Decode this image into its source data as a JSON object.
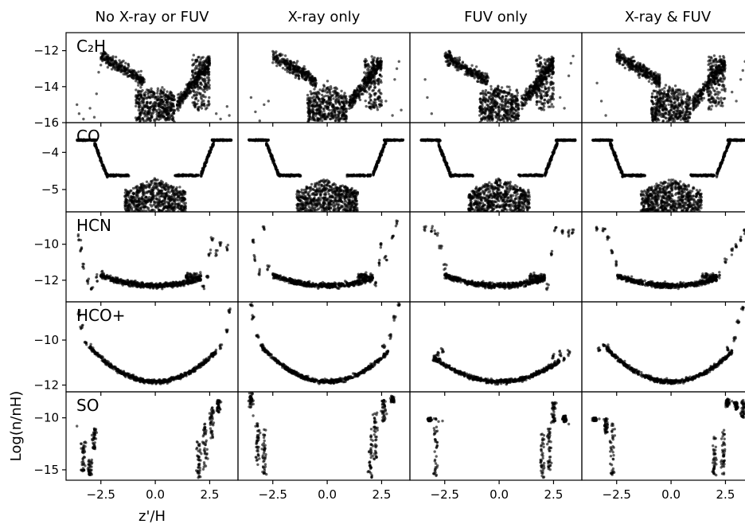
{
  "chart_data": {
    "type": "scatter",
    "layout": "grid",
    "columns": [
      "No X-ray or FUV",
      "X-ray only",
      "FUV only",
      "X-ray & FUV"
    ],
    "xlabel": "z'/H",
    "ylabel": "Log(n/nH)",
    "xlim": [
      -4.1,
      3.8
    ],
    "x_ticks": [
      -2.5,
      0.0,
      2.5
    ],
    "x_tick_labels": [
      "−2.5",
      "0.0",
      "2.5"
    ],
    "marker_color": "#000000",
    "rows": [
      {
        "label": "C₂H",
        "ylim": [
          -16.0,
          -11.0
        ],
        "y_ticks": [
          -16,
          -14,
          -12
        ],
        "y_tick_labels": [
          "−16",
          "−14",
          "−12"
        ],
        "shape": "c2h",
        "variants": [
          {
            "stray_left": [
              [
                -3.6,
                -15.0
              ],
              [
                -3.5,
                -15.5
              ],
              [
                -3.3,
                -15.8
              ],
              [
                -3.0,
                -15.2
              ],
              [
                -2.7,
                -14.4
              ],
              [
                -2.6,
                -13.2
              ],
              [
                -2.5,
                -12.8
              ],
              [
                -2.8,
                -15.7
              ]
            ],
            "stray_right": [
              [
                2.8,
                -15.5
              ],
              [
                3.0,
                -15.8
              ],
              [
                3.3,
                -15.1
              ],
              [
                3.4,
                -15.6
              ]
            ]
          },
          {
            "stray_left": [
              [
                -3.5,
                -14.6
              ],
              [
                -3.3,
                -15.4
              ],
              [
                -3.1,
                -15.9
              ],
              [
                -2.9,
                -15.0
              ],
              [
                -2.7,
                -14.8
              ]
            ],
            "stray_right": [
              [
                2.7,
                -14.8
              ],
              [
                3.0,
                -15.6
              ],
              [
                3.1,
                -13.6
              ],
              [
                3.2,
                -13.0
              ],
              [
                3.3,
                -12.6
              ],
              [
                3.4,
                -15.3
              ]
            ]
          },
          {
            "stray_left": [
              [
                -3.4,
                -13.6
              ],
              [
                -3.3,
                -14.6
              ],
              [
                -3.1,
                -15.5
              ]
            ],
            "stray_right": [
              [
                2.8,
                -14.6
              ],
              [
                3.0,
                -15.2
              ],
              [
                3.2,
                -13.4
              ],
              [
                3.3,
                -12.7
              ],
              [
                3.4,
                -12.3
              ]
            ]
          },
          {
            "stray_left": [
              [
                -3.4,
                -13.8
              ],
              [
                -3.2,
                -14.8
              ],
              [
                -3.0,
                -15.6
              ]
            ],
            "stray_right": [
              [
                2.8,
                -14.3
              ],
              [
                3.0,
                -14.8
              ],
              [
                3.2,
                -13.6
              ],
              [
                3.3,
                -13.1
              ],
              [
                3.4,
                -12.6
              ]
            ]
          }
        ]
      },
      {
        "label": "CO",
        "ylim": [
          -5.6,
          -3.2
        ],
        "y_ticks": [
          -5,
          -4
        ],
        "y_tick_labels": [
          "−5",
          "−4"
        ],
        "shape": "co",
        "variants": [
          {},
          {},
          {},
          {}
        ]
      },
      {
        "label": "HCN",
        "ylim": [
          -13.2,
          -8.2
        ],
        "y_ticks": [
          -12,
          -10
        ],
        "y_tick_labels": [
          "−12",
          "−10"
        ],
        "shape": "hcn",
        "variants": [
          {
            "left_end": [
              [
                -3.5,
                -9.6
              ],
              [
                -3.4,
                -10.3
              ],
              [
                -3.3,
                -11.2
              ],
              [
                -3.1,
                -12.0
              ],
              [
                -2.9,
                -12.4
              ],
              [
                -2.7,
                -11.9
              ],
              [
                -2.5,
                -11.6
              ]
            ],
            "right_end": [
              [
                2.2,
                -12.3
              ],
              [
                2.4,
                -11.8
              ],
              [
                2.5,
                -10.5
              ],
              [
                2.6,
                -9.7
              ],
              [
                2.8,
                -10.5
              ],
              [
                3.0,
                -10.0
              ],
              [
                3.3,
                -10.2
              ]
            ]
          },
          {
            "left_end": [
              [
                -3.4,
                -9.8
              ],
              [
                -3.3,
                -10.8
              ],
              [
                -3.1,
                -11.6
              ],
              [
                -2.9,
                -9.2
              ],
              [
                -2.7,
                -11.3
              ]
            ],
            "right_end": [
              [
                2.2,
                -12.1
              ],
              [
                2.4,
                -11.0
              ],
              [
                2.5,
                -10.1
              ],
              [
                2.7,
                -10.8
              ],
              [
                3.0,
                -9.6
              ],
              [
                3.2,
                -8.8
              ]
            ]
          },
          {
            "left_end": [
              [
                -3.4,
                -9.1
              ],
              [
                -3.1,
                -9.2
              ],
              [
                -2.9,
                -9.4
              ],
              [
                -2.7,
                -10.2
              ],
              [
                -2.5,
                -11.2
              ]
            ],
            "right_end": [
              [
                2.2,
                -12.4
              ],
              [
                2.4,
                -10.6
              ],
              [
                2.6,
                -9.2
              ],
              [
                2.9,
                -9.3
              ],
              [
                3.2,
                -9.4
              ],
              [
                3.4,
                -9.3
              ]
            ]
          },
          {
            "left_end": [
              [
                -3.4,
                -9.1
              ],
              [
                -3.1,
                -9.2
              ],
              [
                -2.9,
                -9.6
              ],
              [
                -2.7,
                -10.4
              ],
              [
                -2.5,
                -11.1
              ]
            ],
            "right_end": [
              [
                2.2,
                -11.8
              ],
              [
                2.5,
                -11.0
              ],
              [
                2.8,
                -10.4
              ],
              [
                3.0,
                -10.1
              ],
              [
                3.2,
                -9.7
              ],
              [
                3.4,
                -9.2
              ]
            ]
          }
        ]
      },
      {
        "label": "HCO+",
        "ylim": [
          -12.3,
          -8.3
        ],
        "y_ticks": [
          -12,
          -10
        ],
        "y_tick_labels": [
          "−12",
          "−10"
        ],
        "shape": "hcoplus",
        "variants": [
          {
            "left_end": [
              [
                -3.5,
                -8.8
              ],
              [
                -3.4,
                -9.4
              ],
              [
                -3.2,
                -10.1
              ],
              [
                -3.0,
                -10.3
              ]
            ],
            "right_end": [
              [
                2.6,
                -10.6
              ],
              [
                3.0,
                -10.3
              ],
              [
                3.3,
                -9.6
              ],
              [
                3.4,
                -8.7
              ]
            ]
          },
          {
            "left_end": [
              [
                -3.5,
                -8.4
              ],
              [
                -3.4,
                -9.0
              ],
              [
                -3.2,
                -9.8
              ],
              [
                -3.0,
                -10.2
              ]
            ],
            "right_end": [
              [
                2.6,
                -10.3
              ],
              [
                2.9,
                -9.8
              ],
              [
                3.1,
                -9.0
              ],
              [
                3.3,
                -8.4
              ]
            ]
          },
          {
            "left_end": [
              [
                -3.0,
                -10.9
              ],
              [
                -2.8,
                -10.6
              ],
              [
                -2.6,
                -10.5
              ]
            ],
            "right_end": [
              [
                2.5,
                -10.7
              ],
              [
                2.8,
                -10.6
              ],
              [
                3.0,
                -10.8
              ],
              [
                3.2,
                -10.6
              ]
            ]
          },
          {
            "left_end": [
              [
                -3.3,
                -10.4
              ],
              [
                -3.1,
                -10.2
              ],
              [
                -2.9,
                -10.3
              ]
            ],
            "right_end": [
              [
                2.6,
                -10.4
              ],
              [
                2.9,
                -9.9
              ],
              [
                3.1,
                -9.2
              ],
              [
                3.3,
                -8.6
              ]
            ]
          }
        ]
      },
      {
        "label": "SO",
        "ylim": [
          -16.0,
          -7.5
        ],
        "y_ticks": [
          -15,
          -10
        ],
        "y_tick_labels": [
          "−15",
          "−10"
        ],
        "shape": "so",
        "variants": [
          {
            "left_cols": [
              [
                -3.3,
                -12.3,
                -15.2
              ],
              [
                -3.0,
                -14.0,
                -15.5
              ],
              [
                -2.8,
                -11.0,
                -13.0
              ]
            ],
            "right_cols": [
              [
                2.0,
                -12.0,
                -15.8
              ],
              [
                2.3,
                -10.5,
                -15.0
              ],
              [
                2.6,
                -9.0,
                -12.0
              ],
              [
                2.9,
                -8.3,
                -9.5
              ]
            ],
            "extra": [
              [
                -3.6,
                -10.8
              ],
              [
                -3.4,
                -12.5
              ]
            ]
          },
          {
            "left_cols": [
              [
                -3.5,
                -7.6,
                -9.0
              ],
              [
                -3.2,
                -10.5,
                -14.5
              ],
              [
                -2.9,
                -11.0,
                -15.5
              ]
            ],
            "right_cols": [
              [
                2.0,
                -11.0,
                -15.8
              ],
              [
                2.2,
                -9.5,
                -14.0
              ],
              [
                2.6,
                -8.3,
                -10.5
              ],
              [
                3.0,
                -7.9,
                -8.5
              ]
            ],
            "extra": [
              [
                -3.4,
                -9.8
              ],
              [
                -3.0,
                -13.0
              ]
            ]
          },
          {
            "left_cols": [
              [
                -3.2,
                -10.0,
                -10.3
              ],
              [
                -2.9,
                -10.0,
                -15.8
              ]
            ],
            "right_cols": [
              [
                2.0,
                -11.5,
                -15.8
              ],
              [
                2.3,
                -11.0,
                -15.2
              ],
              [
                2.5,
                -8.5,
                -10.5
              ],
              [
                3.0,
                -9.8,
                -10.4
              ]
            ],
            "extra": [
              [
                -2.6,
                -10.3
              ],
              [
                3.2,
                -10.6
              ]
            ]
          },
          {
            "left_cols": [
              [
                -3.5,
                -10.0,
                -10.3
              ],
              [
                -3.0,
                -10.0,
                -11.5
              ],
              [
                -2.7,
                -10.5,
                -15.8
              ]
            ],
            "right_cols": [
              [
                2.0,
                -11.5,
                -15.8
              ],
              [
                2.4,
                -11.0,
                -15.5
              ],
              [
                2.6,
                -8.2,
                -9.0
              ],
              [
                3.0,
                -8.5,
                -9.2
              ],
              [
                3.3,
                -8.3,
                -10.0
              ]
            ],
            "extra": [
              [
                -3.3,
                -10.1
              ],
              [
                2.8,
                -8.4
              ]
            ]
          }
        ]
      }
    ]
  }
}
